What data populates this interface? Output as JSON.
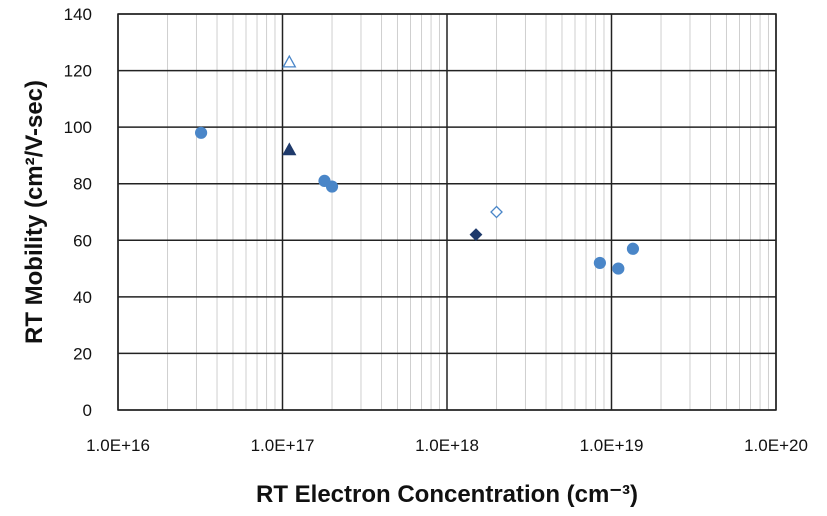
{
  "chart_data": {
    "type": "scatter",
    "title": "",
    "xlabel": "RT Electron Concentration (cm⁻³)",
    "ylabel": "RT Mobility (cm²/V-sec)",
    "x_scale": "log",
    "xlim": [
      1e+16,
      1e+20
    ],
    "ylim": [
      0,
      140
    ],
    "x_ticks": [
      {
        "value": 1e+16,
        "label": "1.0E+16"
      },
      {
        "value": 1e+17,
        "label": "1.0E+17"
      },
      {
        "value": 1e+18,
        "label": "1.0E+18"
      },
      {
        "value": 1e+19,
        "label": "1.0E+19"
      },
      {
        "value": 1e+20,
        "label": "1.0E+20"
      }
    ],
    "y_ticks": [
      {
        "value": 0,
        "label": "0"
      },
      {
        "value": 20,
        "label": "20"
      },
      {
        "value": 40,
        "label": "40"
      },
      {
        "value": 60,
        "label": "60"
      },
      {
        "value": 80,
        "label": "80"
      },
      {
        "value": 100,
        "label": "100"
      },
      {
        "value": 120,
        "label": "120"
      },
      {
        "value": 140,
        "label": "140"
      }
    ],
    "grid": {
      "major": true,
      "minor_x": true
    },
    "legend": "none",
    "series": [
      {
        "marker": "circle-filled",
        "color": "#4a86c8",
        "points": [
          [
            3.2e+16,
            98
          ],
          [
            1.8e+17,
            81
          ],
          [
            2e+17,
            79
          ],
          [
            8.5e+18,
            52
          ],
          [
            1.1e+19,
            50
          ],
          [
            1.35e+19,
            57
          ]
        ]
      },
      {
        "marker": "triangle-open",
        "color": "#4a86c8",
        "points": [
          [
            1.1e+17,
            123
          ]
        ]
      },
      {
        "marker": "triangle-filled",
        "color": "#1f3a6b",
        "points": [
          [
            1.1e+17,
            92
          ]
        ]
      },
      {
        "marker": "diamond-open",
        "color": "#4a86c8",
        "points": [
          [
            2e+18,
            70
          ]
        ]
      },
      {
        "marker": "diamond-filled",
        "color": "#1f3a6b",
        "points": [
          [
            1.5e+18,
            62
          ]
        ]
      }
    ]
  }
}
